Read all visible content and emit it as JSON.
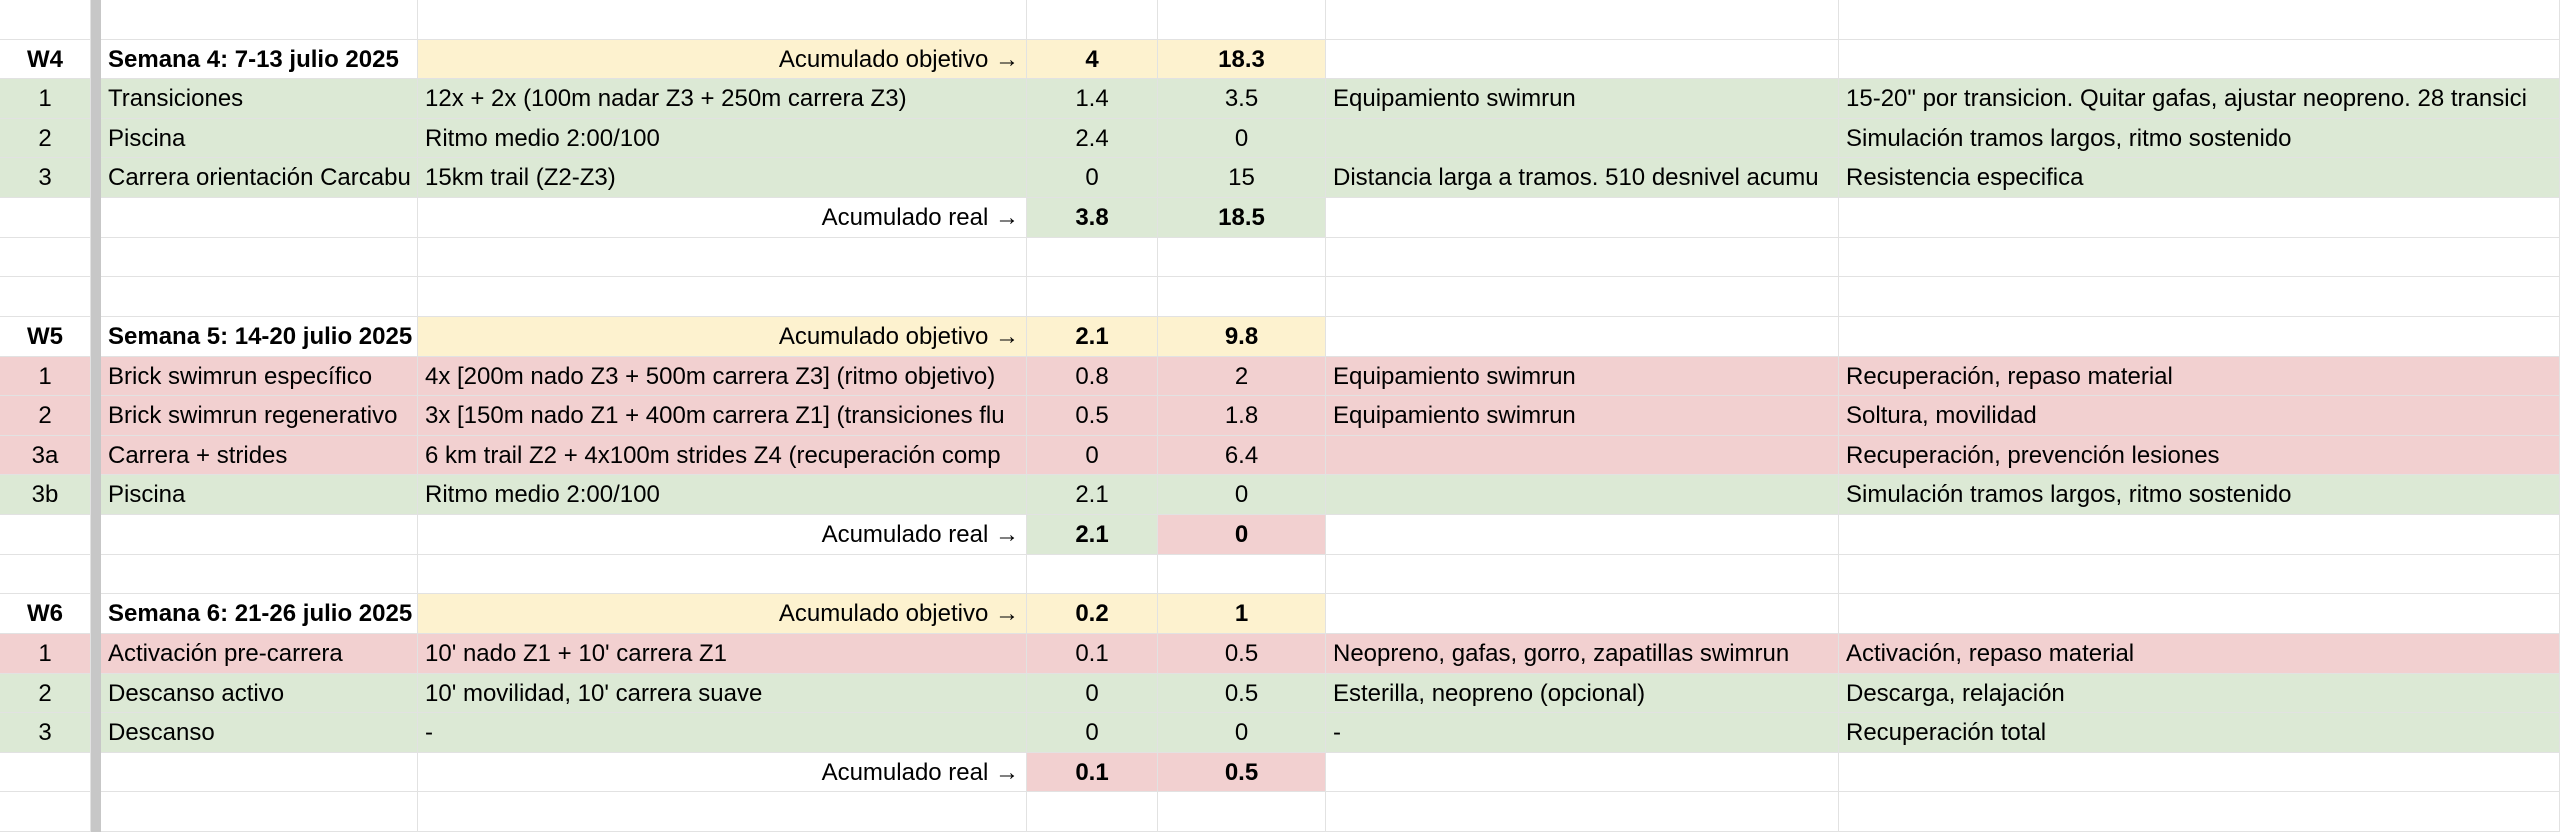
{
  "weeks": [
    {
      "id": "W4",
      "title": "Semana 4: 7-13 julio 2025",
      "target_label": "Acumulado objetivo →",
      "target_swim": 4,
      "target_run": 18.3,
      "sessions": [
        {
          "n": "1",
          "name": "Transiciones",
          "plan": "12x + 2x (100m nadar Z3 + 250m carrera Z3)",
          "swim": 1.4,
          "run": 3.5,
          "gear": "Equipamiento swimrun",
          "notes": "15-20\" por transicion. Quitar gafas, ajustar neopreno. 28 transici",
          "color": "#dce9d5"
        },
        {
          "n": "2",
          "name": "Piscina",
          "plan": "Ritmo medio 2:00/100",
          "swim": 2.4,
          "run": 0,
          "notes": "Simulación tramos largos, ritmo sostenido",
          "color": "#dce9d5"
        },
        {
          "n": "3",
          "name": "Carrera orientación Carcabu",
          "plan": "15km trail (Z2-Z3)",
          "swim": 0,
          "run": 15,
          "gear": "Distancia larga a tramos. 510 desnivel acumu",
          "notes": "Resistencia especifica",
          "color": "#dce9d5"
        }
      ],
      "real_label": "Acumulado real →",
      "real_swim": 3.8,
      "real_run": 18.5,
      "real_swim_color": "#dce9d5",
      "real_run_color": "#dce9d5"
    },
    {
      "id": "W5",
      "title": "Semana 5: 14-20 julio 2025",
      "target_label": "Acumulado objetivo →",
      "target_swim": 2.1,
      "target_run": 9.8,
      "sessions": [
        {
          "n": "1",
          "name": "Brick swimrun específico",
          "plan": "4x [200m nado Z3 + 500m carrera Z3] (ritmo objetivo)",
          "swim": 0.8,
          "run": 2,
          "gear": "Equipamiento swimrun",
          "notes": "Recuperación, repaso material",
          "color": "#f2d0d0"
        },
        {
          "n": "2",
          "name": "Brick swimrun regenerativo",
          "plan": "3x [150m nado Z1 + 400m carrera Z1] (transiciones flu",
          "swim": 0.5,
          "run": 1.8,
          "gear": "Equipamiento swimrun",
          "notes": "Soltura, movilidad",
          "color": "#f2d0d0"
        },
        {
          "n": "3a",
          "name": "Carrera + strides",
          "plan": "6 km trail Z2 + 4x100m strides Z4 (recuperación comp",
          "swim": 0,
          "run": 6.4,
          "notes": "Recuperación, prevención lesiones",
          "color": "#f2d0d0"
        },
        {
          "n": "3b",
          "name": "Piscina",
          "plan": "Ritmo medio 2:00/100",
          "swim": 2.1,
          "run": 0,
          "notes": "Simulación tramos largos, ritmo sostenido",
          "color": "#dce9d5"
        }
      ],
      "real_label": "Acumulado real →",
      "real_swim": 2.1,
      "real_run": 0,
      "real_swim_color": "#dce9d5",
      "real_run_color": "#f2d0d0"
    },
    {
      "id": "W6",
      "title": "Semana 6: 21-26 julio 2025",
      "target_label": "Acumulado objetivo →",
      "target_swim": 0.2,
      "target_run": 1,
      "sessions": [
        {
          "n": "1",
          "name": "Activación pre-carrera",
          "plan": "10' nado Z1 + 10' carrera Z1",
          "swim": 0.1,
          "run": 0.5,
          "gear": "Neopreno, gafas, gorro, zapatillas swimrun",
          "notes": "Activación, repaso material",
          "color": "#f2d0d0"
        },
        {
          "n": "2",
          "name": "Descanso activo",
          "plan": "10' movilidad, 10' carrera suave",
          "swim": 0,
          "run": 0.5,
          "gear": "Esterilla, neopreno (opcional)",
          "notes": "Descarga, relajación",
          "color": "#dce9d5"
        },
        {
          "n": "3",
          "name": "Descanso",
          "plan": "-",
          "swim": 0,
          "run": 0,
          "gear": "-",
          "notes": "Recuperación total",
          "color": "#dce9d5"
        }
      ],
      "real_label": "Acumulado real →",
      "real_swim": 0.1,
      "real_run": 0.5,
      "real_swim_color": "#f2d0d0",
      "real_run_color": "#f2d0d0"
    }
  ]
}
